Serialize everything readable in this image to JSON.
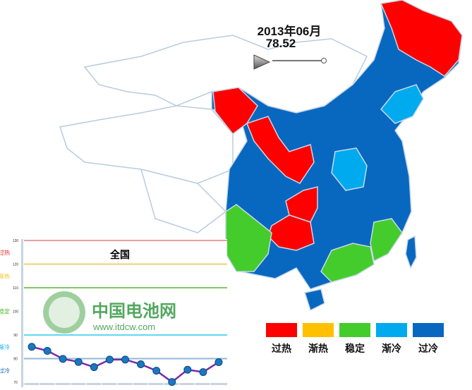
{
  "header": {
    "date": "2013年06月",
    "value": "78.52"
  },
  "map": {
    "colors": {
      "过热": "#ff0000",
      "渐热": "#ffc000",
      "稳定": "#44cc2c",
      "渐冷": "#00aaee",
      "过冷": "#0868c0"
    }
  },
  "legend": [
    {
      "label": "过热",
      "color": "#ff0000"
    },
    {
      "label": "渐热",
      "color": "#ffc000"
    },
    {
      "label": "稳定",
      "color": "#44cc2c"
    },
    {
      "label": "渐冷",
      "color": "#00aaee"
    },
    {
      "label": "过冷",
      "color": "#0868c0"
    }
  ],
  "chart_data": {
    "type": "line",
    "title": "全国",
    "ylim": [
      70,
      130
    ],
    "yticks": [
      "130",
      "120",
      "110",
      "100",
      "90",
      "80",
      "70"
    ],
    "bands": [
      {
        "label": "过热",
        "color": "#e02020"
      },
      {
        "label": "渐热",
        "color": "#f0c020"
      },
      {
        "label": "稳定",
        "color": "#44bb22"
      },
      {
        "label": "渐冷",
        "color": "#00aaee"
      },
      {
        "label": "过冷",
        "color": "#1060b0"
      }
    ],
    "threshold_lines": [
      {
        "y": 130,
        "color": "#e8a0a0"
      },
      {
        "y": 120,
        "color": "#f0d070"
      },
      {
        "y": 110,
        "color": "#80c860"
      },
      {
        "y": 90,
        "color": "#60d8f0"
      },
      {
        "y": 80,
        "color": "#90b8d8"
      }
    ],
    "values": [
      85,
      83.3,
      79.9,
      78.6,
      76.4,
      79.6,
      79.6,
      77.6,
      74.9,
      70.1,
      75.3,
      74.3,
      78.52
    ]
  },
  "watermark": {
    "name": "中国电池网",
    "url": "www.itdcw.com"
  }
}
